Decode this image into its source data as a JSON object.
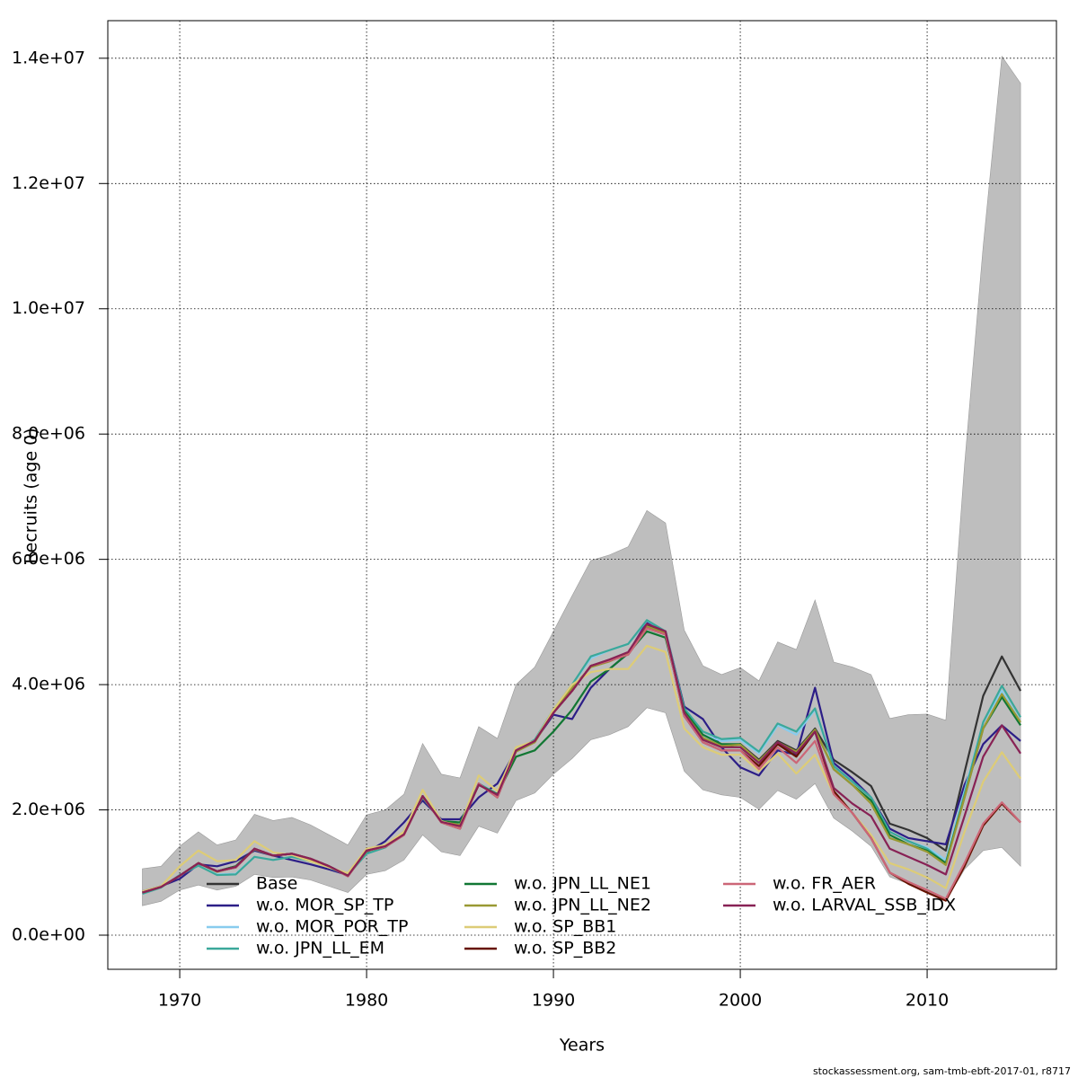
{
  "chart_data": {
    "type": "line",
    "x_label": "Years",
    "y_label": "Recruits (age 0)",
    "footnote": "stockassessment.org, sam-tmb-ebft-2017-01, r8717",
    "x": [
      1968,
      1969,
      1970,
      1971,
      1972,
      1973,
      1974,
      1975,
      1976,
      1977,
      1978,
      1979,
      1980,
      1981,
      1982,
      1983,
      1984,
      1985,
      1986,
      1987,
      1988,
      1989,
      1990,
      1991,
      1992,
      1993,
      1994,
      1995,
      1996,
      1997,
      1998,
      1999,
      2000,
      2001,
      2002,
      2003,
      2004,
      2005,
      2006,
      2007,
      2008,
      2009,
      2010,
      2011,
      2012,
      2013,
      2014,
      2015
    ],
    "xlim": [
      1966.15,
      2016.92
    ],
    "xticks": [
      1970,
      1980,
      1990,
      2000,
      2010
    ],
    "ylim": [
      -545000,
      14600000
    ],
    "yticks": [
      {
        "value": 0,
        "label": "0.0e+00"
      },
      {
        "value": 2000000,
        "label": "2.0e+06"
      },
      {
        "value": 4000000,
        "label": "4.0e+06"
      },
      {
        "value": 6000000,
        "label": "6.0e+06"
      },
      {
        "value": 8000000,
        "label": "8.0e+06"
      },
      {
        "value": 10000000,
        "label": "1.0e+07"
      },
      {
        "value": 12000000,
        "label": "1.2e+07"
      },
      {
        "value": 14000000,
        "label": "1.4e+07"
      }
    ],
    "grid": true,
    "band": {
      "color": "#bebebe",
      "upper": [
        1060000,
        1100000,
        1420000,
        1650000,
        1440000,
        1520000,
        1930000,
        1830000,
        1880000,
        1760000,
        1600000,
        1440000,
        1920000,
        2000000,
        2250000,
        3060000,
        2570000,
        2510000,
        3330000,
        3140000,
        4000000,
        4280000,
        4850000,
        5420000,
        5980000,
        6070000,
        6200000,
        6780000,
        6580000,
        4870000,
        4300000,
        4160000,
        4270000,
        4060000,
        4680000,
        4560000,
        5350000,
        4360000,
        4280000,
        4160000,
        3460000,
        3520000,
        3530000,
        3430000,
        7500000,
        11000000,
        14030000,
        13600000
      ],
      "lower": [
        470000,
        540000,
        720000,
        800000,
        720000,
        780000,
        970000,
        920000,
        930000,
        880000,
        780000,
        680000,
        970000,
        1030000,
        1200000,
        1600000,
        1330000,
        1270000,
        1740000,
        1630000,
        2150000,
        2270000,
        2570000,
        2820000,
        3120000,
        3200000,
        3330000,
        3630000,
        3550000,
        2620000,
        2320000,
        2240000,
        2200000,
        2010000,
        2310000,
        2170000,
        2420000,
        1870000,
        1660000,
        1420000,
        930000,
        820000,
        700000,
        550000,
        1050000,
        1350000,
        1400000,
        1100000
      ]
    },
    "series": [
      {
        "name": "Base",
        "color": "#333333",
        "values": [
          680000,
          770000,
          950000,
          1150000,
          1020000,
          1100000,
          1380000,
          1270000,
          1300000,
          1220000,
          1100000,
          950000,
          1350000,
          1420000,
          1620000,
          2220000,
          1820000,
          1750000,
          2400000,
          2250000,
          2950000,
          3100000,
          3550000,
          3900000,
          4300000,
          4380000,
          4500000,
          4950000,
          4850000,
          3550000,
          3150000,
          3000000,
          3050000,
          2800000,
          3100000,
          2950000,
          3300000,
          2800000,
          2600000,
          2380000,
          1780000,
          1680000,
          1550000,
          1350000,
          2600000,
          3820000,
          4450000,
          3900000
        ]
      },
      {
        "name": "w.o. MOR_SP_TP",
        "color": "#2c1e87",
        "values": [
          700000,
          780000,
          900000,
          1130000,
          1100000,
          1180000,
          1350000,
          1270000,
          1200000,
          1130000,
          1050000,
          960000,
          1320000,
          1500000,
          1800000,
          2150000,
          1850000,
          1850000,
          2200000,
          2420000,
          2950000,
          3100000,
          3520000,
          3450000,
          3950000,
          4250000,
          4500000,
          5000000,
          4850000,
          3650000,
          3450000,
          3000000,
          2680000,
          2550000,
          2950000,
          2880000,
          3950000,
          2750000,
          2500000,
          2200000,
          1700000,
          1550000,
          1500000,
          1450000,
          2400000,
          3050000,
          3350000,
          3100000
        ]
      },
      {
        "name": "w.o. MOR_POR_TP",
        "color": "#88ccee",
        "values": [
          660000,
          760000,
          960000,
          1110000,
          970000,
          980000,
          1250000,
          1200000,
          1250000,
          1180000,
          1080000,
          960000,
          1300000,
          1400000,
          1650000,
          2200000,
          1820000,
          1760000,
          2420000,
          2250000,
          2950000,
          3120000,
          3600000,
          4000000,
          4420000,
          4550000,
          4650000,
          5020000,
          4850000,
          3600000,
          3200000,
          3100000,
          3120000,
          2900000,
          3350000,
          3200000,
          3600000,
          2700000,
          2450000,
          2200000,
          1650000,
          1500000,
          1400000,
          1200000,
          2300000,
          3400000,
          3900000,
          3400000
        ]
      },
      {
        "name": "w.o. JPN_LL_EM",
        "color": "#3aa89a",
        "values": [
          660000,
          760000,
          960000,
          1110000,
          960000,
          970000,
          1250000,
          1200000,
          1250000,
          1180000,
          1080000,
          960000,
          1300000,
          1400000,
          1650000,
          2200000,
          1820000,
          1760000,
          2420000,
          2250000,
          2950000,
          3120000,
          3600000,
          4000000,
          4450000,
          4550000,
          4650000,
          5030000,
          4850000,
          3620000,
          3250000,
          3130000,
          3150000,
          2930000,
          3380000,
          3250000,
          3620000,
          2700000,
          2450000,
          2200000,
          1650000,
          1500000,
          1380000,
          1150000,
          2250000,
          3400000,
          3980000,
          3480000
        ]
      },
      {
        "name": "w.o. JPN_LL_NE1",
        "color": "#117733",
        "values": [
          680000,
          770000,
          950000,
          1150000,
          1020000,
          1100000,
          1380000,
          1270000,
          1300000,
          1220000,
          1100000,
          950000,
          1350000,
          1420000,
          1620000,
          2220000,
          1820000,
          1800000,
          2400000,
          2250000,
          2850000,
          2950000,
          3250000,
          3600000,
          4050000,
          4250000,
          4500000,
          4850000,
          4750000,
          3580000,
          3200000,
          3050000,
          3050000,
          2750000,
          3050000,
          2900000,
          3280000,
          2650000,
          2400000,
          2150000,
          1600000,
          1450000,
          1350000,
          1150000,
          2200000,
          3300000,
          3800000,
          3350000
        ]
      },
      {
        "name": "w.o. JPN_LL_NE2",
        "color": "#999933",
        "values": [
          680000,
          770000,
          950000,
          1150000,
          1010000,
          1090000,
          1370000,
          1270000,
          1300000,
          1210000,
          1090000,
          950000,
          1340000,
          1420000,
          1620000,
          2210000,
          1810000,
          1760000,
          2400000,
          2240000,
          2930000,
          3080000,
          3560000,
          3950000,
          4280000,
          4370000,
          4500000,
          4930000,
          4820000,
          3550000,
          3150000,
          3020000,
          3040000,
          2780000,
          3080000,
          2930000,
          3280000,
          2650000,
          2400000,
          2100000,
          1550000,
          1450000,
          1330000,
          1120000,
          2200000,
          3300000,
          3850000,
          3400000
        ]
      },
      {
        "name": "w.o. SP_BB1",
        "color": "#ddcc77",
        "values": [
          700000,
          780000,
          1100000,
          1350000,
          1180000,
          1200000,
          1500000,
          1320000,
          1280000,
          1180000,
          1080000,
          990000,
          1380000,
          1440000,
          1650000,
          2320000,
          1820000,
          1730000,
          2550000,
          2300000,
          3000000,
          3100000,
          3600000,
          4000000,
          4200000,
          4250000,
          4250000,
          4620000,
          4520000,
          3300000,
          3000000,
          2880000,
          2880000,
          2620000,
          2900000,
          2580000,
          2880000,
          2250000,
          1950000,
          1600000,
          1150000,
          1050000,
          920000,
          750000,
          1650000,
          2450000,
          2920000,
          2500000
        ]
      },
      {
        "name": "w.o. SP_BB2",
        "color": "#661100",
        "values": [
          680000,
          770000,
          950000,
          1150000,
          1020000,
          1080000,
          1380000,
          1270000,
          1300000,
          1220000,
          1100000,
          940000,
          1350000,
          1410000,
          1600000,
          2220000,
          1800000,
          1700000,
          2420000,
          2200000,
          2950000,
          3100000,
          3550000,
          3900000,
          4300000,
          4380000,
          4480000,
          4900000,
          4800000,
          3500000,
          3080000,
          2950000,
          2950000,
          2700000,
          3050000,
          2850000,
          3250000,
          2300000,
          1950000,
          1550000,
          1000000,
          820000,
          680000,
          550000,
          1100000,
          1750000,
          2100000,
          1800000
        ]
      },
      {
        "name": "w.o. FR_AER",
        "color": "#cc6677",
        "values": [
          680000,
          770000,
          950000,
          1150000,
          1020000,
          1080000,
          1380000,
          1270000,
          1300000,
          1220000,
          1100000,
          940000,
          1350000,
          1410000,
          1600000,
          2220000,
          1800000,
          1700000,
          2420000,
          2200000,
          2950000,
          3100000,
          3550000,
          3900000,
          4300000,
          4380000,
          4480000,
          4900000,
          4800000,
          3500000,
          3080000,
          2950000,
          2950000,
          2650000,
          3000000,
          2750000,
          3100000,
          2250000,
          1950000,
          1550000,
          1000000,
          850000,
          720000,
          580000,
          1150000,
          1780000,
          2120000,
          1800000
        ]
      },
      {
        "name": "w.o. LARVAL_SSB_IDX",
        "color": "#882255",
        "values": [
          680000,
          770000,
          950000,
          1150000,
          1020000,
          1090000,
          1380000,
          1270000,
          1300000,
          1220000,
          1100000,
          950000,
          1350000,
          1420000,
          1610000,
          2220000,
          1810000,
          1740000,
          2400000,
          2240000,
          2950000,
          3100000,
          3550000,
          3900000,
          4300000,
          4400000,
          4520000,
          4970000,
          4850000,
          3550000,
          3120000,
          3000000,
          3000000,
          2750000,
          3080000,
          2900000,
          3250000,
          2350000,
          2100000,
          1900000,
          1380000,
          1250000,
          1120000,
          970000,
          1900000,
          2850000,
          3350000,
          2900000
        ]
      }
    ]
  }
}
